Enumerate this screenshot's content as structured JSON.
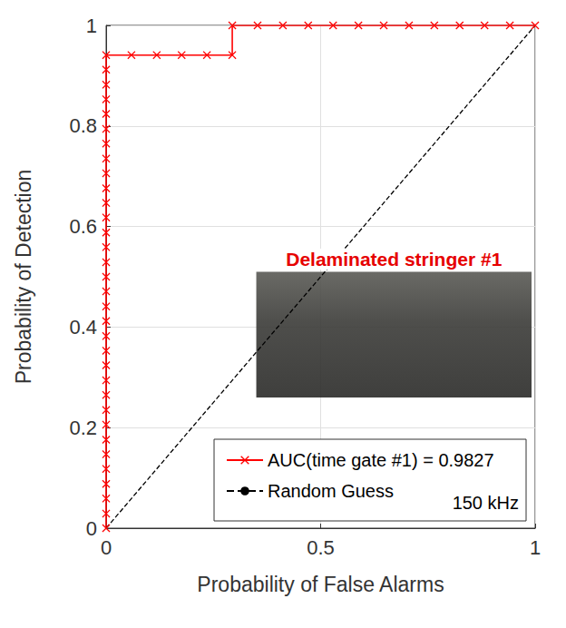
{
  "chart_data": {
    "type": "line",
    "title": "Delaminated stringer #1",
    "annotations": [
      "150 kHz"
    ],
    "x_label": "Probability of False Alarms",
    "y_label": "Probability of Detection",
    "xlim": [
      0,
      1
    ],
    "ylim": [
      0,
      1
    ],
    "xticks": [
      0,
      0.5,
      1
    ],
    "yticks": [
      0,
      0.2,
      0.4,
      0.6,
      0.8,
      1
    ],
    "grid": true,
    "legend": "lower right",
    "series": [
      {
        "name": "AUC(time gate #1) = 0.9827",
        "color": "#ff0000",
        "marker": "x",
        "line_style": "solid",
        "x": [
          0,
          0,
          0,
          0,
          0,
          0,
          0,
          0,
          0,
          0,
          0,
          0,
          0,
          0,
          0,
          0,
          0,
          0,
          0,
          0,
          0,
          0,
          0,
          0,
          0,
          0,
          0,
          0,
          0,
          0,
          0,
          0,
          0,
          0.059,
          0.118,
          0.176,
          0.235,
          0.294,
          0.294,
          0.353,
          0.412,
          0.471,
          0.529,
          0.588,
          0.647,
          0.706,
          0.765,
          0.824,
          0.882,
          0.941,
          1
        ],
        "values": [
          0,
          0.029,
          0.059,
          0.088,
          0.118,
          0.147,
          0.176,
          0.206,
          0.235,
          0.265,
          0.294,
          0.324,
          0.353,
          0.382,
          0.412,
          0.441,
          0.471,
          0.5,
          0.529,
          0.559,
          0.588,
          0.618,
          0.647,
          0.676,
          0.706,
          0.735,
          0.765,
          0.794,
          0.824,
          0.853,
          0.882,
          0.912,
          0.941,
          0.941,
          0.941,
          0.941,
          0.941,
          0.941,
          1,
          1,
          1,
          1,
          1,
          1,
          1,
          1,
          1,
          1,
          1,
          1,
          1
        ]
      },
      {
        "name": "Random Guess",
        "color": "#000000",
        "line_style": "dashed",
        "x": [
          0,
          1
        ],
        "values": [
          0,
          1
        ]
      }
    ]
  }
}
